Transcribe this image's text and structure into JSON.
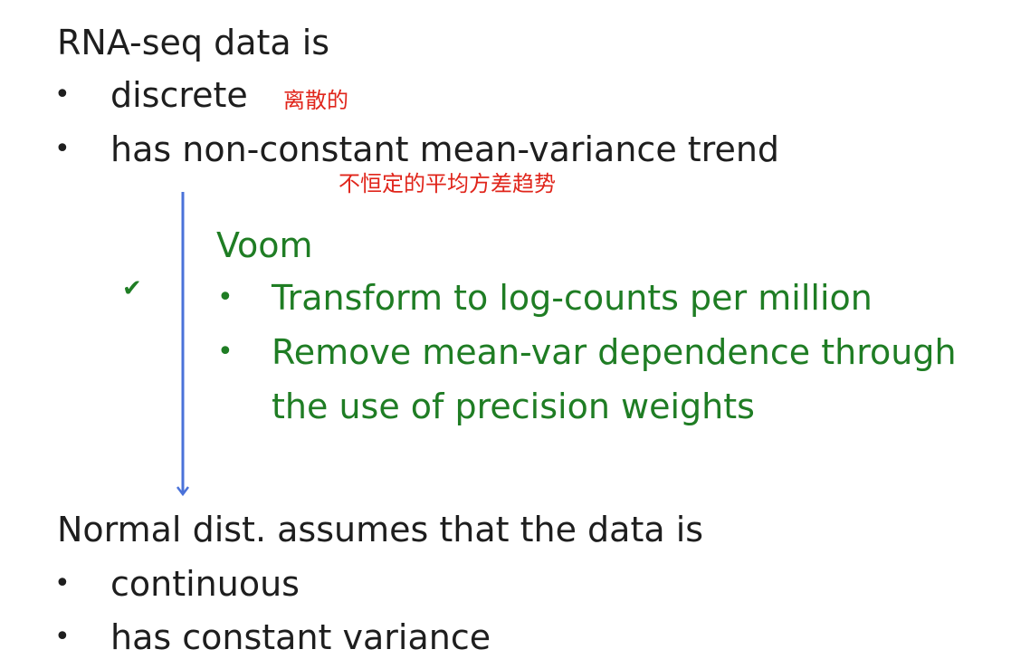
{
  "section1": {
    "heading": "RNA-seq data is",
    "items": [
      {
        "bullet": "•",
        "text": "discrete",
        "note": "离散的"
      },
      {
        "bullet": "•",
        "text": "has non-constant mean-variance trend",
        "note": "不恒定的平均方差趋势"
      }
    ]
  },
  "voom": {
    "check": "✔",
    "heading": "Voom",
    "items": [
      {
        "bullet": "•",
        "text": "Transform to log-counts per million"
      },
      {
        "bullet": "•",
        "text_line1": "Remove mean-var dependence through",
        "text_line2": "the use of precision weights"
      }
    ]
  },
  "section2": {
    "heading": "Normal dist. assumes that the data is",
    "items": [
      {
        "bullet": "•",
        "text": "continuous"
      },
      {
        "bullet": "•",
        "text": "has constant variance"
      }
    ]
  },
  "colors": {
    "text": "#1e1e1e",
    "accent_green": "#1f7d24",
    "annotation_red": "#e0251b",
    "arrow_blue": "#4a72d9"
  },
  "icons": {
    "arrow": "down-arrow-icon",
    "check": "check-icon"
  }
}
